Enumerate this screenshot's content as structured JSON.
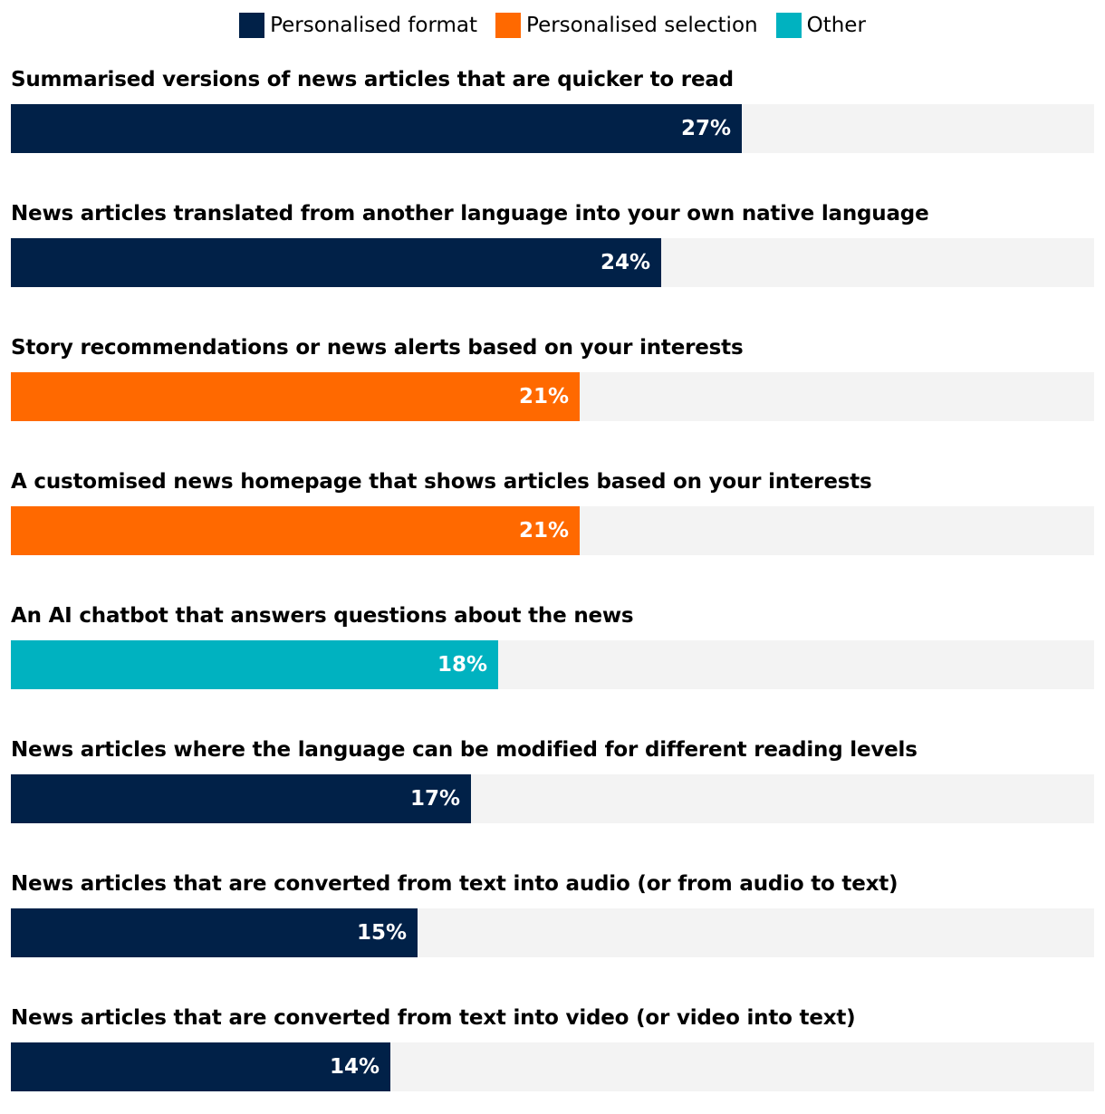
{
  "chart_data": {
    "type": "bar",
    "orientation": "horizontal",
    "legend": [
      {
        "key": "format",
        "label": "Personalised format",
        "color": "#012148"
      },
      {
        "key": "selection",
        "label": "Personalised selection",
        "color": "#ff6900"
      },
      {
        "key": "other",
        "label": "Other",
        "color": "#00b2c0"
      }
    ],
    "xlim": [
      0,
      40
    ],
    "track_color": "#f3f3f3",
    "value_suffix": "%",
    "bars": [
      {
        "label": "Summarised versions of news articles that are quicker to read",
        "value": 27,
        "display": "27%",
        "group": "format"
      },
      {
        "label": "News articles translated from another language into your own native language",
        "value": 24,
        "display": "24%",
        "group": "format"
      },
      {
        "label": "Story recommendations or news alerts based on your interests",
        "value": 21,
        "display": "21%",
        "group": "selection"
      },
      {
        "label": "A customised news homepage that shows articles based on your interests",
        "value": 21,
        "display": "21%",
        "group": "selection"
      },
      {
        "label": "An AI chatbot that answers questions about the news",
        "value": 18,
        "display": "18%",
        "group": "other"
      },
      {
        "label": "News articles where the language can be modified for different reading levels",
        "value": 17,
        "display": "17%",
        "group": "format"
      },
      {
        "label": "News articles that are converted from text into audio (or from audio to text)",
        "value": 15,
        "display": "15%",
        "group": "format"
      },
      {
        "label": "News articles that are converted from text into video (or video into text)",
        "value": 14,
        "display": "14%",
        "group": "format"
      }
    ]
  }
}
